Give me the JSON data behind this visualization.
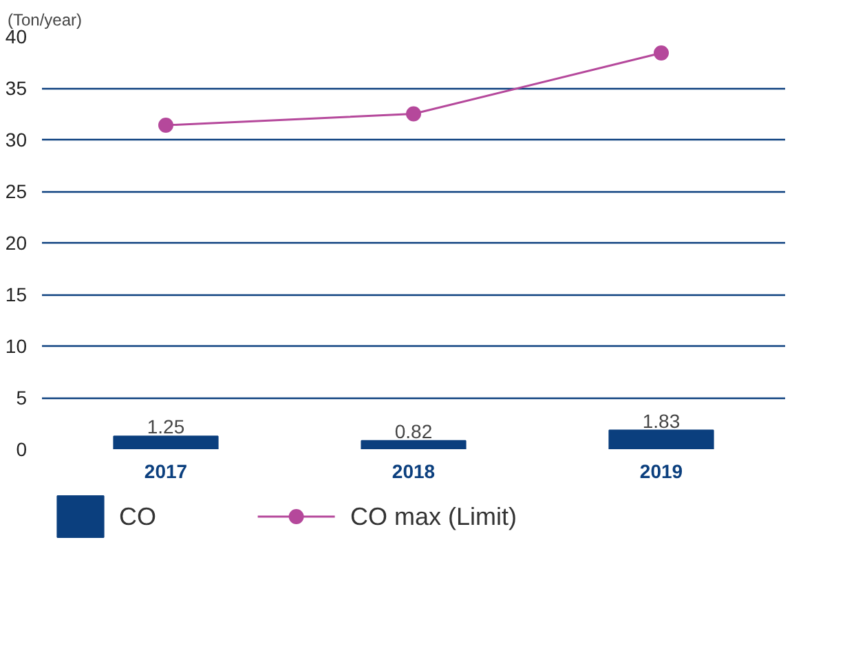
{
  "chart_data": {
    "type": "bar",
    "ylabel": "(Ton/year)",
    "categories": [
      "2017",
      "2018",
      "2019"
    ],
    "series": [
      {
        "name": "CO",
        "color": "#0b3f7e",
        "values": [
          1.25,
          0.82,
          1.83
        ],
        "value_labels": [
          "1.25",
          "0.82",
          "1.83"
        ]
      },
      {
        "name": "CO max (Limit)",
        "type": "line",
        "color": "#b5489b",
        "values": [
          31.4,
          32.5,
          38.4
        ],
        "marker": "circle"
      }
    ],
    "ylim": [
      0,
      40
    ],
    "yticks": [
      0,
      5,
      10,
      15,
      20,
      25,
      30,
      35,
      40
    ],
    "grid": "y",
    "legend": "bottom"
  }
}
